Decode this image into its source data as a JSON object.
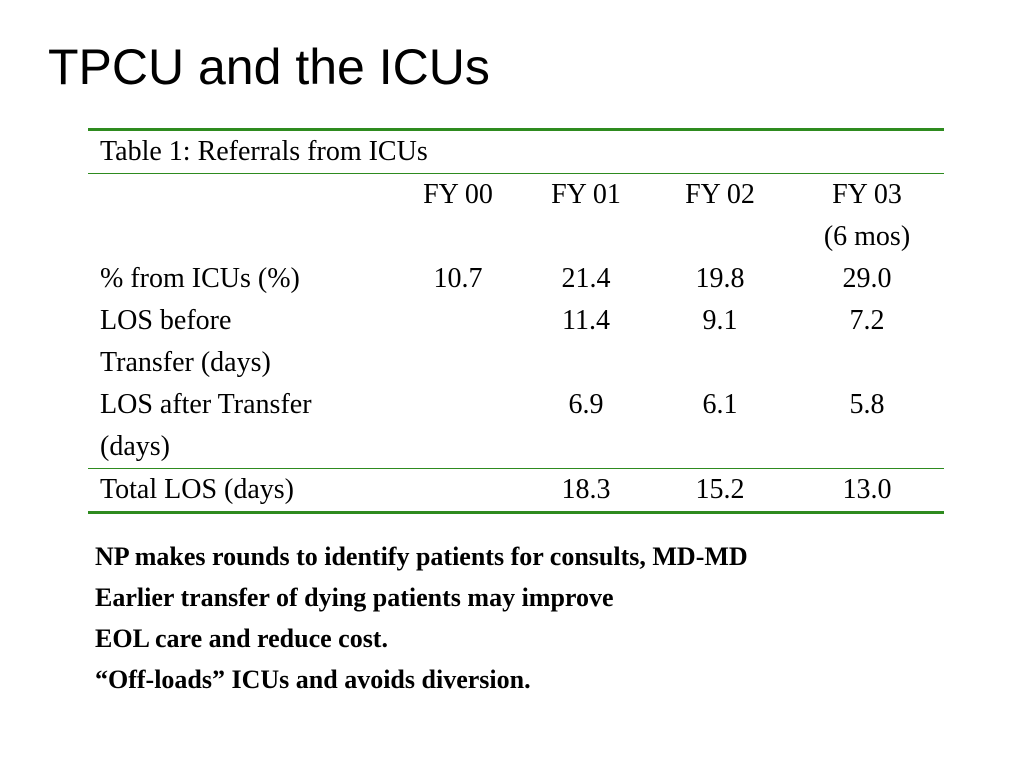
{
  "title": "TPCU and the ICUs",
  "table": {
    "caption": "Table 1: Referrals from ICUs",
    "headers": [
      "",
      "FY 00",
      "FY 01",
      "FY 02",
      "FY 03",
      "(6 mos)"
    ],
    "rows": [
      {
        "label": [
          "% from ICUs (%)"
        ],
        "values": [
          "10.7",
          "21.4",
          "19.8",
          "29.0"
        ]
      },
      {
        "label": [
          "LOS before",
          "Transfer (days)"
        ],
        "values": [
          "",
          "11.4",
          "9.1",
          "7.2"
        ]
      },
      {
        "label": [
          "LOS after Transfer",
          "(days)"
        ],
        "values": [
          "",
          "6.9",
          "6.1",
          "5.8"
        ]
      },
      {
        "label": [
          "Total LOS (days)"
        ],
        "values": [
          "",
          "18.3",
          "15.2",
          "13.0"
        ]
      }
    ]
  },
  "notes": [
    "NP makes rounds to identify patients for consults, MD-MD",
    "Earlier transfer of dying patients may improve",
    "EOL care and reduce cost.",
    "“Off-loads” ICUs and avoids diversion."
  ]
}
